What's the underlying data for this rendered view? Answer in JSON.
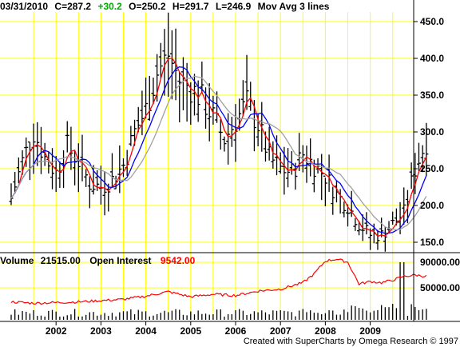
{
  "header": {
    "date": "03/31/2010",
    "close": "C=287.2",
    "change": "+30.2",
    "open": "O=250.2",
    "high": "H=291.7",
    "low": "L=246.9",
    "indicator": "Mov Avg 3 lines"
  },
  "volume_header": {
    "volume_label": "Volume",
    "volume_value": "21515.00",
    "oi_label": "Open Interest",
    "oi_value": "9542.00"
  },
  "credit": "Created with SuperCharts by Omega Research © 1997",
  "colors": {
    "grid": "#ffff00",
    "bars": "#000000",
    "ma_fast": "#ff0000",
    "ma_mid": "#0000ff",
    "ma_slow": "#a0a0a0",
    "open_interest": "#ff0000",
    "change": "#00aa00",
    "oi_value": "#ff0000"
  },
  "chart_data": [
    {
      "type": "line",
      "subtype": "ohlc-bars-with-moving-averages",
      "title": "",
      "x_ticks": [
        "2002",
        "2003",
        "2004",
        "2005",
        "2006",
        "2007",
        "2008",
        "2009"
      ],
      "y_ticks": [
        "150.0",
        "200.0",
        "250.0",
        "300.0",
        "350.0",
        "400.0",
        "450.0"
      ],
      "ylim": [
        140,
        470
      ],
      "xlim": [
        2001.0,
        2010.25
      ],
      "grid": true,
      "series": [
        {
          "name": "",
          "x": [
            2001.0,
            2001.25,
            2001.5,
            2001.75,
            2002.0,
            2002.25,
            2002.5,
            2002.75,
            2003.0,
            2003.25,
            2003.5,
            2003.75,
            2004.0,
            2004.25,
            2004.5,
            2004.75,
            2005.0,
            2005.25,
            2005.5,
            2005.75,
            2006.0,
            2006.25,
            2006.5,
            2006.75,
            2007.0,
            2007.25,
            2007.5,
            2007.75,
            2008.0,
            2008.25,
            2008.5,
            2008.75,
            2009.0,
            2009.25,
            2009.5,
            2009.75,
            2010.0,
            2010.25
          ],
          "values": [
            210,
            260,
            300,
            265,
            245,
            280,
            260,
            230,
            225,
            235,
            255,
            300,
            330,
            380,
            405,
            370,
            360,
            345,
            320,
            290,
            315,
            340,
            310,
            265,
            250,
            245,
            270,
            255,
            240,
            215,
            200,
            175,
            160,
            160,
            175,
            190,
            250,
            287
          ]
        }
      ]
    },
    {
      "type": "line",
      "subtype": "volume-with-open-interest",
      "y_ticks": [
        "50000.00",
        "90000.00"
      ],
      "x_ticks": [
        "2002",
        "2003",
        "2004",
        "2005",
        "2006",
        "2007",
        "2008",
        "2009"
      ],
      "series": [
        {
          "name": "Open Interest",
          "x": [
            2001.0,
            2001.5,
            2002.0,
            2002.5,
            2003.0,
            2003.5,
            2004.0,
            2004.5,
            2005.0,
            2005.5,
            2006.0,
            2006.5,
            2007.0,
            2007.5,
            2007.75,
            2008.0,
            2008.25,
            2008.5,
            2008.75,
            2009.0,
            2009.25,
            2009.5,
            2009.75,
            2010.0,
            2010.25
          ],
          "values": [
            28000,
            26000,
            27000,
            28000,
            30000,
            32000,
            37000,
            44000,
            36000,
            40000,
            38000,
            45000,
            48000,
            58000,
            72000,
            92000,
            95000,
            90000,
            56000,
            60000,
            58000,
            62000,
            68000,
            70000,
            68000
          ]
        }
      ]
    }
  ]
}
